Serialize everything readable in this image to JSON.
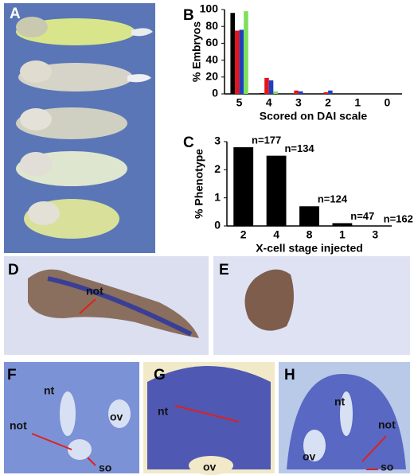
{
  "chart_data": [
    {
      "type": "bar",
      "panel": "B",
      "y_label": "% Embryos",
      "x_label": "Scored on DAI scale",
      "categories": [
        "5",
        "4",
        "3",
        "2",
        "1",
        "0"
      ],
      "series": [
        {
          "color": "#000000",
          "values": [
            96,
            1,
            0,
            0,
            0,
            0
          ]
        },
        {
          "color": "#e3141b",
          "values": [
            75,
            19,
            4,
            2,
            0,
            0
          ]
        },
        {
          "color": "#1f3fbf",
          "values": [
            76,
            16,
            3,
            4,
            0,
            0
          ]
        },
        {
          "color": "#7ee05a",
          "values": [
            98,
            3,
            0,
            0,
            0,
            0
          ]
        }
      ],
      "ylim": [
        0,
        100
      ],
      "yticks": [
        0,
        20,
        40,
        60,
        80,
        100
      ]
    },
    {
      "type": "bar",
      "panel": "C",
      "y_label": "% Phenotype",
      "x_label": "X-cell stage injected",
      "categories": [
        "2",
        "4",
        "8",
        "1",
        "3"
      ],
      "values": [
        2.8,
        2.5,
        0.7,
        0.1,
        0
      ],
      "color": "#000000",
      "annotations": [
        "n=177",
        "n=134",
        "n=124",
        "n=47",
        "n=162"
      ],
      "ylim": [
        0,
        3
      ],
      "yticks": [
        0,
        1,
        2,
        3
      ]
    }
  ],
  "panels": {
    "A": "A",
    "D": {
      "letter": "D",
      "not": "not"
    },
    "E": "E",
    "F": {
      "letter": "F",
      "nt": "nt",
      "ov": "ov",
      "not": "not",
      "so": "so"
    },
    "G": {
      "letter": "G",
      "nt": "nt",
      "ov": "ov"
    },
    "H": {
      "letter": "H",
      "nt": "nt",
      "not": "not",
      "ov": "ov",
      "so": "so"
    }
  }
}
